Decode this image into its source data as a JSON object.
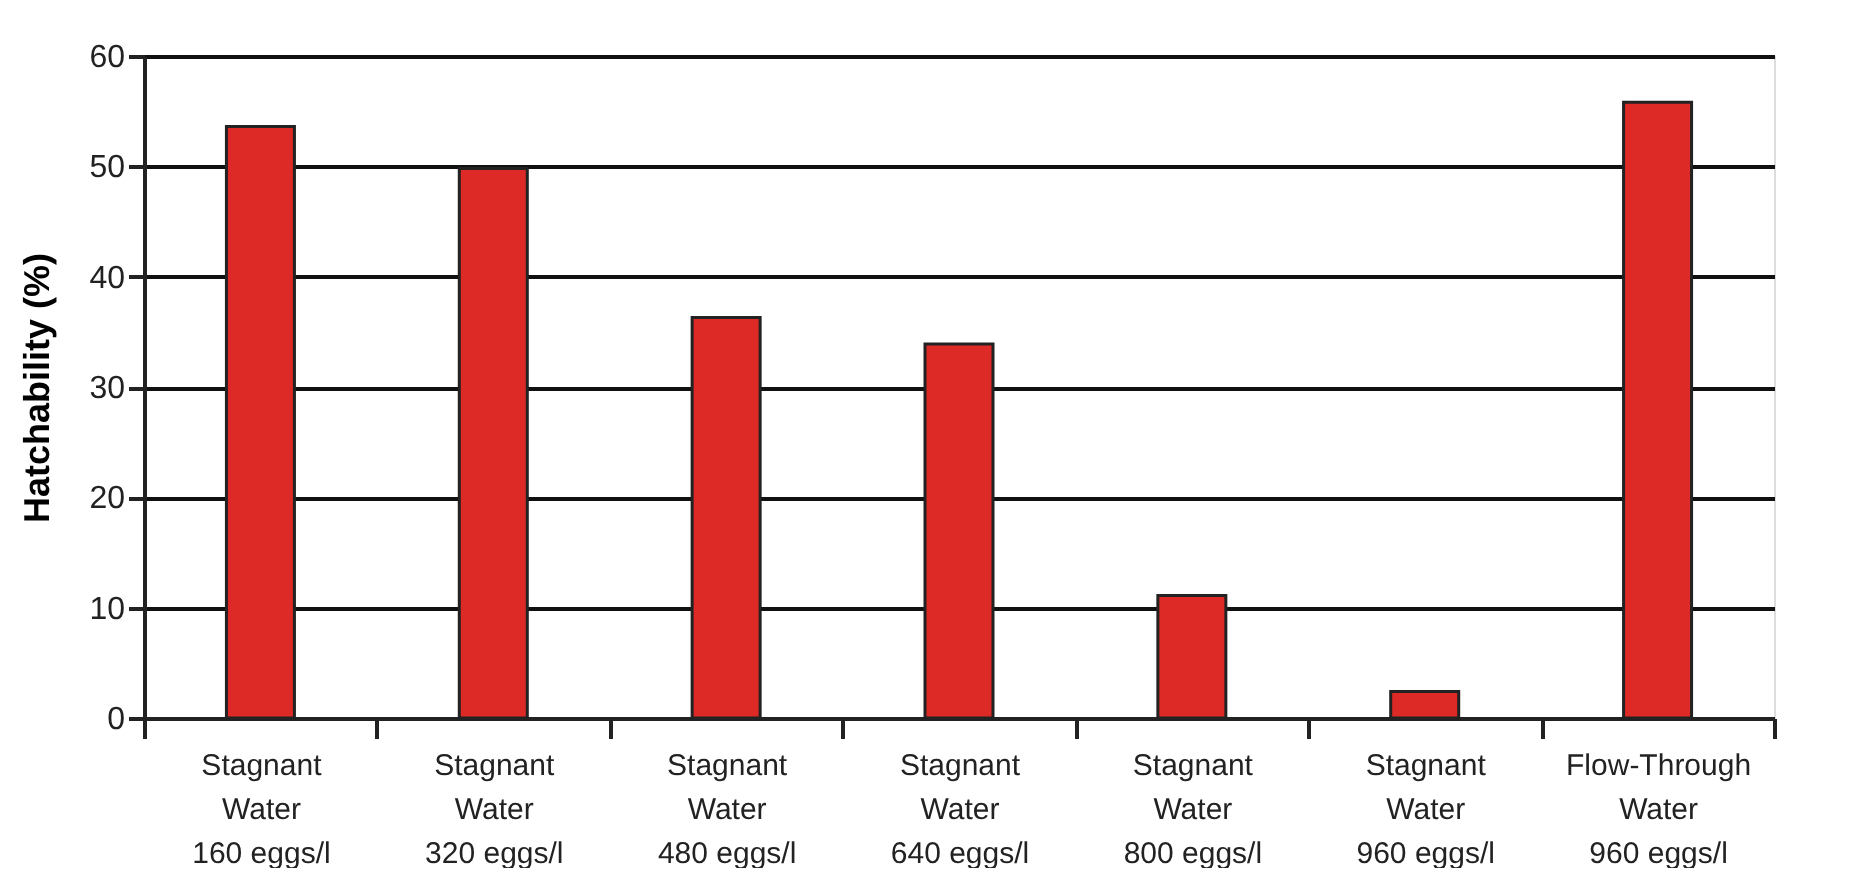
{
  "chart_data": {
    "type": "bar",
    "ylabel": "Hatchability (%)",
    "categories": [
      "Stagnant\nWater\n160 eggs/l",
      "Stagnant\nWater\n320 eggs/l",
      "Stagnant\nWater\n480 eggs/l",
      "Stagnant\nWater\n640 eggs/l",
      "Stagnant\nWater\n800 eggs/l",
      "Stagnant\nWater\n960 eggs/l",
      "Flow-Through\nWater\n960 eggs/l"
    ],
    "values": [
      53.6,
      49.8,
      36.3,
      33.9,
      11.1,
      2.4,
      55.8
    ],
    "color": "#dd2a26",
    "ylim": [
      0,
      60
    ],
    "yticks": [
      0,
      10,
      20,
      30,
      40,
      50,
      60
    ],
    "grid": "y"
  }
}
